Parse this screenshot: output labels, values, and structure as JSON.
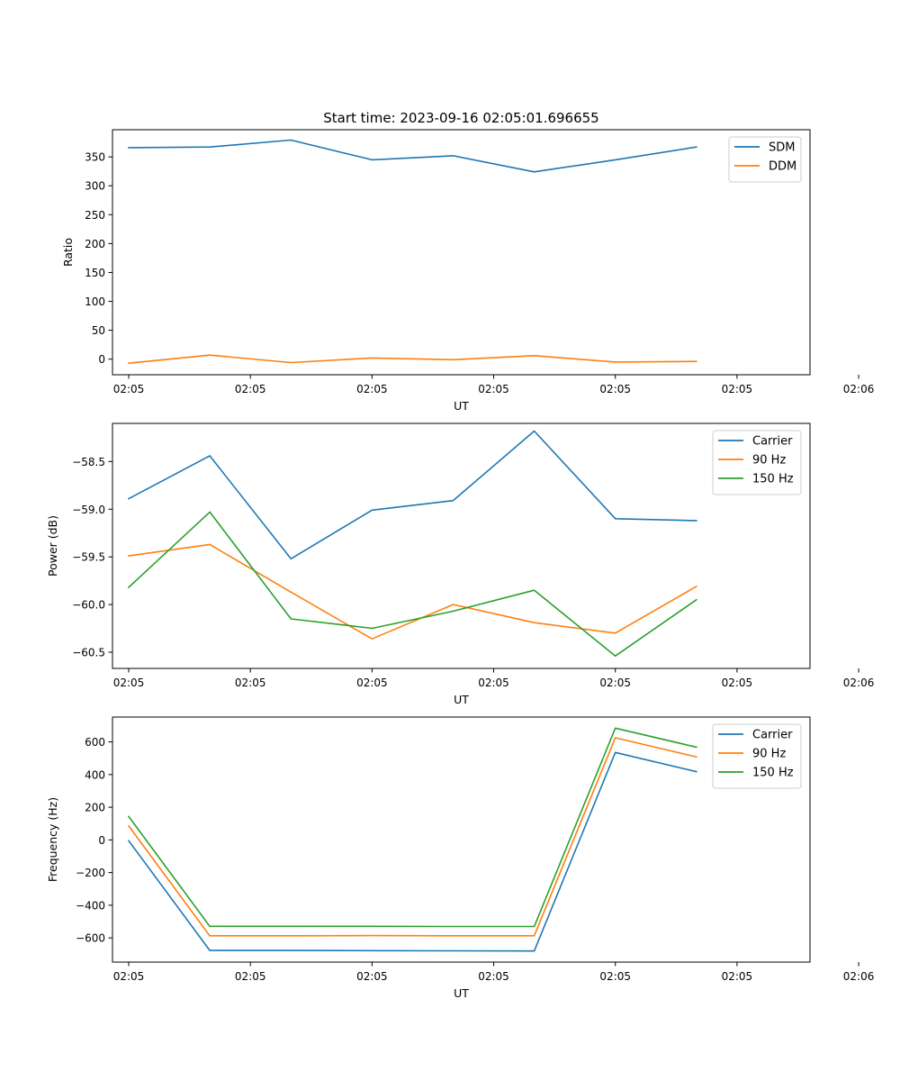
{
  "chart_data": [
    {
      "type": "line",
      "title": "Start time: 2023-09-16 02:05:01.696655",
      "xlabel": "UT",
      "ylabel": "Ratio",
      "x": [
        1,
        2,
        3,
        4,
        5,
        6,
        7,
        8
      ],
      "xlim": [
        0.8,
        9.4
      ],
      "x_ticks": [
        1,
        2.5,
        4,
        5.5,
        7,
        8.5,
        10
      ],
      "x_tick_labels": [
        "02:05",
        "02:05",
        "02:05",
        "02:05",
        "02:05",
        "02:05",
        "02:06"
      ],
      "ylim": [
        -27,
        397
      ],
      "y_ticks": [
        0,
        50,
        100,
        150,
        200,
        250,
        300,
        350
      ],
      "y_tick_labels": [
        "0",
        "50",
        "100",
        "150",
        "200",
        "250",
        "300",
        "350"
      ],
      "legend_position": "top-right",
      "series": [
        {
          "name": "SDM",
          "color": "#1f77b4",
          "values": [
            366,
            367,
            379,
            345,
            352,
            324,
            345,
            367
          ]
        },
        {
          "name": "DDM",
          "color": "#ff7f0e",
          "values": [
            -7,
            7,
            -6,
            2,
            -1,
            6,
            -5,
            -4
          ]
        }
      ]
    },
    {
      "type": "line",
      "title": "",
      "xlabel": "UT",
      "ylabel": "Power (dB)",
      "x": [
        1,
        2,
        3,
        4,
        5,
        6,
        7,
        8
      ],
      "xlim": [
        0.8,
        9.4
      ],
      "x_ticks": [
        1,
        2.5,
        4,
        5.5,
        7,
        8.5,
        10
      ],
      "x_tick_labels": [
        "02:05",
        "02:05",
        "02:05",
        "02:05",
        "02:05",
        "02:05",
        "02:06"
      ],
      "ylim": [
        -60.67,
        -58.1
      ],
      "y_ticks": [
        -58.5,
        -59.0,
        -59.5,
        -60.0,
        -60.5
      ],
      "y_tick_labels": [
        "−58.5",
        "−59.0",
        "−59.5",
        "−60.0",
        "−60.5"
      ],
      "legend_position": "top-right",
      "series": [
        {
          "name": "Carrier",
          "color": "#1f77b4",
          "values": [
            -58.89,
            -58.44,
            -59.52,
            -59.01,
            -58.91,
            -58.18,
            -59.1,
            -59.12
          ]
        },
        {
          "name": "90 Hz",
          "color": "#ff7f0e",
          "values": [
            -59.49,
            -59.37,
            -59.87,
            -60.36,
            -60.0,
            -60.19,
            -60.3,
            -59.81
          ]
        },
        {
          "name": "150 Hz",
          "color": "#2ca02c",
          "values": [
            -59.82,
            -59.03,
            -60.15,
            -60.25,
            -60.07,
            -59.85,
            -60.54,
            -59.95
          ]
        }
      ]
    },
    {
      "type": "line",
      "title": "",
      "xlabel": "UT",
      "ylabel": "Frequency (Hz)",
      "x": [
        1,
        2,
        3,
        4,
        5,
        6,
        7,
        8
      ],
      "xlim": [
        0.8,
        9.4
      ],
      "x_ticks": [
        1,
        2.5,
        4,
        5.5,
        7,
        8.5,
        10
      ],
      "x_tick_labels": [
        "02:05",
        "02:05",
        "02:05",
        "02:05",
        "02:05",
        "02:05",
        "02:06"
      ],
      "ylim": [
        -748,
        752
      ],
      "y_ticks": [
        600,
        400,
        200,
        0,
        -200,
        -400,
        -600
      ],
      "y_tick_labels": [
        "600",
        "400",
        "200",
        "0",
        "−200",
        "−400",
        "−600"
      ],
      "legend_position": "top-right",
      "series": [
        {
          "name": "Carrier",
          "color": "#1f77b4",
          "values": [
            -5,
            -677,
            -677,
            -678,
            -679,
            -680,
            535,
            418
          ]
        },
        {
          "name": "90 Hz",
          "color": "#ff7f0e",
          "values": [
            85,
            -587,
            -587,
            -586,
            -587,
            -587,
            625,
            508
          ]
        },
        {
          "name": "150 Hz",
          "color": "#2ca02c",
          "values": [
            143,
            -529,
            -529,
            -529,
            -530,
            -530,
            684,
            568
          ]
        }
      ]
    }
  ]
}
